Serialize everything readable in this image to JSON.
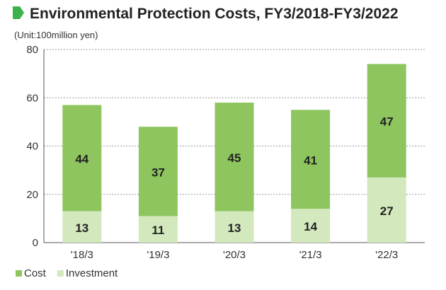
{
  "header": {
    "title": "Environmental Protection Costs, FY3/2018-FY3/2022",
    "marker_icon": "green-pentagon-marker-icon"
  },
  "colors": {
    "cost": "#8ec55f",
    "investment": "#d3e8bc",
    "marker": "#3db24a",
    "grid": "#9a9a9a",
    "axis": "#555555"
  },
  "chart_data": {
    "type": "bar",
    "stacked": true,
    "unit_label": "(Unit:100million yen)",
    "categories": [
      "'18/3",
      "'19/3",
      "'20/3",
      "'21/3",
      "'22/3"
    ],
    "series": [
      {
        "name": "Investment",
        "values": [
          13,
          11,
          13,
          14,
          27
        ]
      },
      {
        "name": "Cost",
        "values": [
          44,
          37,
          45,
          41,
          47
        ]
      }
    ],
    "ylim": [
      0,
      80
    ],
    "yticks": [
      0,
      20,
      40,
      60,
      80
    ],
    "grid": true,
    "legend": {
      "position": "bottom-left",
      "order": [
        "Cost",
        "Investment"
      ]
    },
    "xlabel": "",
    "ylabel": ""
  }
}
